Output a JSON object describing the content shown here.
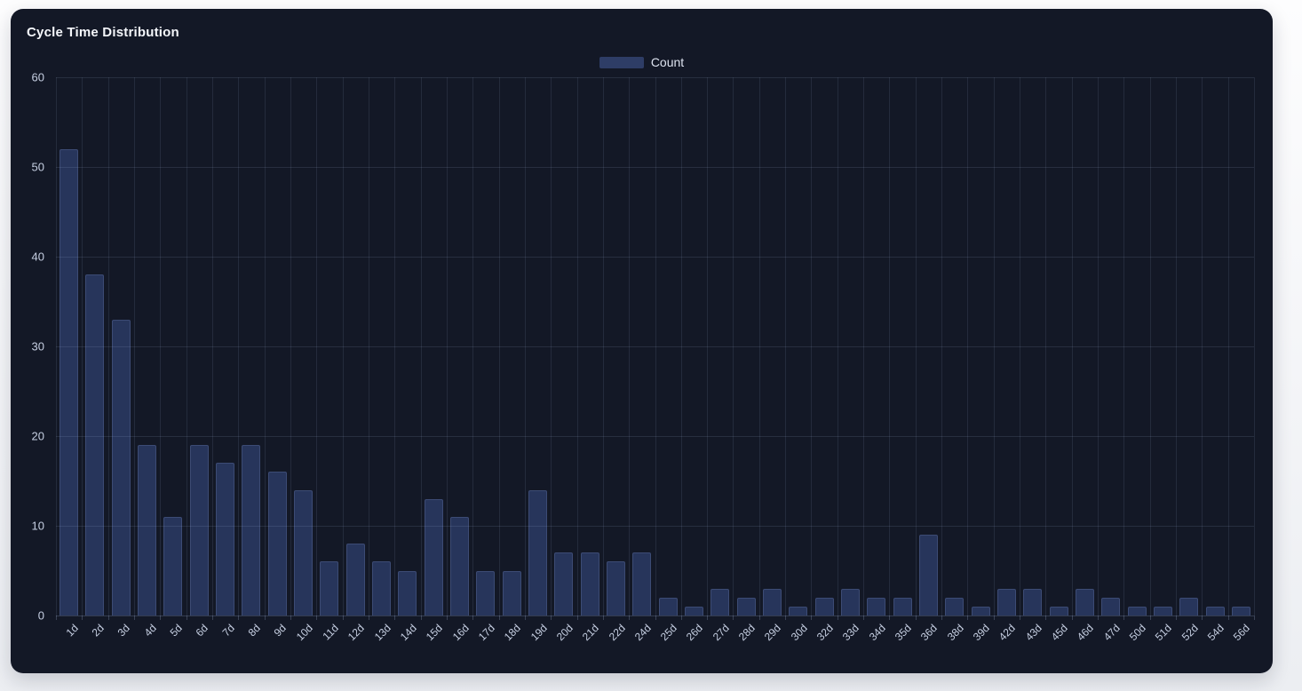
{
  "card": {
    "title": "Cycle Time Distribution"
  },
  "legend": {
    "label": "Count",
    "swatch_color": "#2e3d66"
  },
  "chart_data": {
    "type": "bar",
    "title": "Cycle Time Distribution",
    "xlabel": "",
    "ylabel": "",
    "legend_entries": [
      "Count"
    ],
    "legend_position": "top-center",
    "grid": true,
    "ylim": [
      0,
      60
    ],
    "yticks": [
      0,
      10,
      20,
      30,
      40,
      50,
      60
    ],
    "categories": [
      "1d",
      "2d",
      "3d",
      "4d",
      "5d",
      "6d",
      "7d",
      "8d",
      "9d",
      "10d",
      "11d",
      "12d",
      "13d",
      "14d",
      "15d",
      "16d",
      "17d",
      "18d",
      "19d",
      "20d",
      "21d",
      "22d",
      "24d",
      "25d",
      "26d",
      "27d",
      "28d",
      "29d",
      "30d",
      "32d",
      "33d",
      "34d",
      "35d",
      "36d",
      "38d",
      "39d",
      "42d",
      "43d",
      "45d",
      "46d",
      "47d",
      "50d",
      "51d",
      "52d",
      "54d",
      "56d"
    ],
    "values": [
      52,
      38,
      33,
      19,
      11,
      19,
      17,
      19,
      16,
      14,
      6,
      8,
      6,
      5,
      13,
      11,
      5,
      5,
      14,
      7,
      7,
      6,
      7,
      2,
      1,
      3,
      2,
      3,
      1,
      2,
      3,
      2,
      2,
      9,
      2,
      1,
      3,
      3,
      1,
      3,
      2,
      1,
      1,
      2,
      1,
      1
    ],
    "bar_color": "#27355b",
    "bar_border_color": "#3c4b74",
    "axis_label_color": "#c6cfe2",
    "background_color": "#131826"
  }
}
